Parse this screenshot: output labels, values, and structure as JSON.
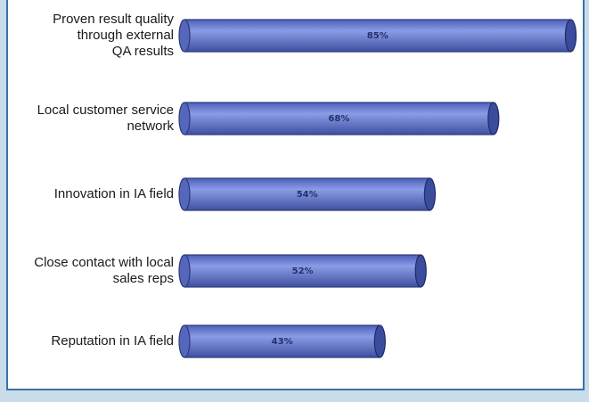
{
  "chart_data": {
    "type": "bar",
    "categories": [
      [
        "Proven result quality",
        "through external",
        "QA results"
      ],
      [
        "Local customer service",
        "network"
      ],
      [
        "Innovation in IA field"
      ],
      [
        "Close contact with local",
        "sales reps"
      ],
      [
        "Reputation in IA field"
      ]
    ],
    "values": [
      85,
      68,
      54,
      52,
      43
    ],
    "value_labels": [
      "85%",
      "68%",
      "54%",
      "52%",
      "43%"
    ],
    "color": "#6b7fd3"
  }
}
